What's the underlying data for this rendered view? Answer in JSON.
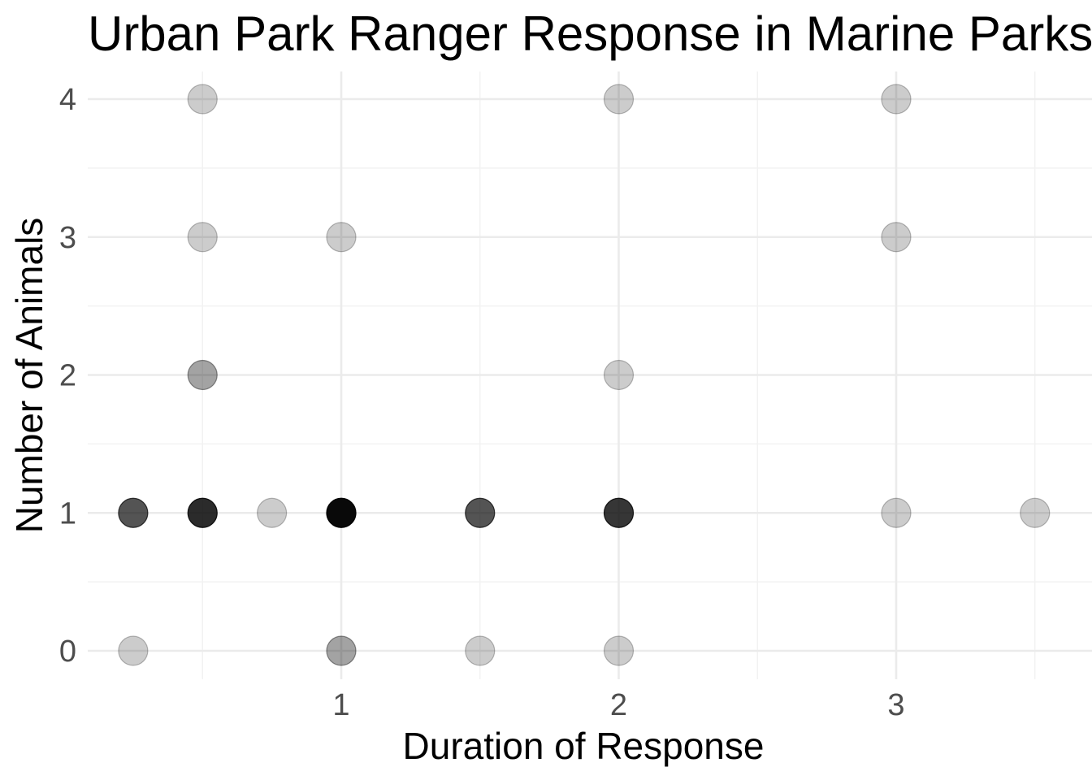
{
  "chart_data": {
    "type": "scatter",
    "title": "Urban Park Ranger Response in Marine Parks",
    "xlabel": "Duration of Response",
    "ylabel": "Number of Animals",
    "xlim": [
      0.1,
      3.6
    ],
    "ylim": [
      -0.2,
      4.2
    ],
    "x_ticks": [
      1,
      2,
      3
    ],
    "y_ticks": [
      0,
      1,
      2,
      3,
      4
    ],
    "x_minor": [
      0.5,
      1.5,
      2.5,
      3.5
    ],
    "y_minor": [
      0.5,
      1.5,
      2.5,
      3.5
    ],
    "grid": true,
    "legend": "none",
    "point_color": "#000000",
    "point_alpha": 0.2,
    "points": [
      {
        "x": 0.25,
        "y": 1,
        "count": 5
      },
      {
        "x": 0.25,
        "y": 0,
        "count": 1
      },
      {
        "x": 0.5,
        "y": 4,
        "count": 1
      },
      {
        "x": 0.5,
        "y": 3,
        "count": 1
      },
      {
        "x": 0.5,
        "y": 2,
        "count": 2
      },
      {
        "x": 0.5,
        "y": 1,
        "count": 8
      },
      {
        "x": 0.75,
        "y": 1,
        "count": 1
      },
      {
        "x": 1,
        "y": 3,
        "count": 1
      },
      {
        "x": 1,
        "y": 1,
        "count": 15
      },
      {
        "x": 1,
        "y": 0,
        "count": 2
      },
      {
        "x": 1.5,
        "y": 1,
        "count": 5
      },
      {
        "x": 1.5,
        "y": 0,
        "count": 1
      },
      {
        "x": 2,
        "y": 4,
        "count": 1
      },
      {
        "x": 2,
        "y": 2,
        "count": 1
      },
      {
        "x": 2,
        "y": 1,
        "count": 7
      },
      {
        "x": 2,
        "y": 0,
        "count": 1
      },
      {
        "x": 3,
        "y": 4,
        "count": 1
      },
      {
        "x": 3,
        "y": 3,
        "count": 1
      },
      {
        "x": 3,
        "y": 1,
        "count": 1
      },
      {
        "x": 3.5,
        "y": 1,
        "count": 1
      }
    ]
  }
}
